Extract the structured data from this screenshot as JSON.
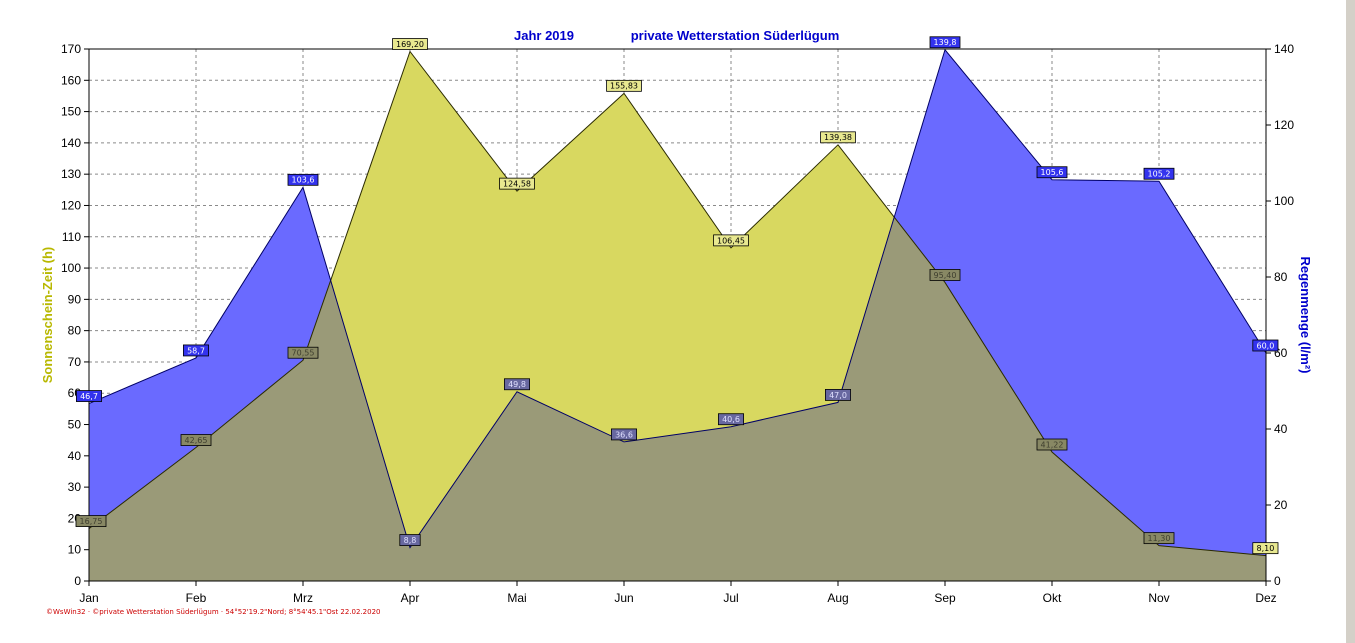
{
  "chart_data": {
    "type": "area",
    "title_left": "Jahr  2019",
    "title_right": "private Wetterstation Süderlügum",
    "categories": [
      "Jan",
      "Feb",
      "Mrz",
      "Apr",
      "Mai",
      "Jun",
      "Jul",
      "Aug",
      "Sep",
      "Okt",
      "Nov",
      "Dez"
    ],
    "y_left": {
      "label": "Sonnenschein-Zeit  (h)",
      "range": [
        0,
        170
      ],
      "ticks": [
        0,
        10,
        20,
        30,
        40,
        50,
        60,
        70,
        80,
        90,
        100,
        110,
        120,
        130,
        140,
        150,
        160,
        170
      ]
    },
    "y_right": {
      "label": "Regenmenge  (l/m²)",
      "range": [
        0,
        140
      ],
      "ticks": [
        0,
        20,
        40,
        60,
        80,
        100,
        120,
        140
      ]
    },
    "grid": true,
    "series": [
      {
        "axis": "left",
        "color": "#d8d860",
        "values": [
          16.75,
          42.65,
          70.55,
          169.2,
          124.58,
          155.83,
          106.45,
          139.38,
          95.4,
          41.22,
          11.3,
          8.1
        ],
        "labels": [
          "16,75",
          "42,65",
          "70,55",
          "169,20",
          "124,58",
          "155,83",
          "106,45",
          "139,38",
          "95,40",
          "41,22",
          "11,30",
          "8,10"
        ]
      },
      {
        "axis": "right",
        "color": "#6a6aff",
        "values": [
          46.7,
          58.7,
          103.6,
          8.8,
          49.8,
          36.6,
          40.6,
          47.0,
          139.8,
          105.6,
          105.2,
          60.0
        ],
        "labels": [
          "46,7",
          "58,7",
          "103,6",
          "8,8",
          "49,8",
          "36,6",
          "40,6",
          "47,0",
          "139,8",
          "105,6",
          "105,2",
          "60,0"
        ]
      }
    ],
    "footer": "©WsWin32 · ©private Wetterstation Süderlügum · 54°52'19.2\"Nord; 8°54'45.1\"Ost  22.02.2020"
  }
}
